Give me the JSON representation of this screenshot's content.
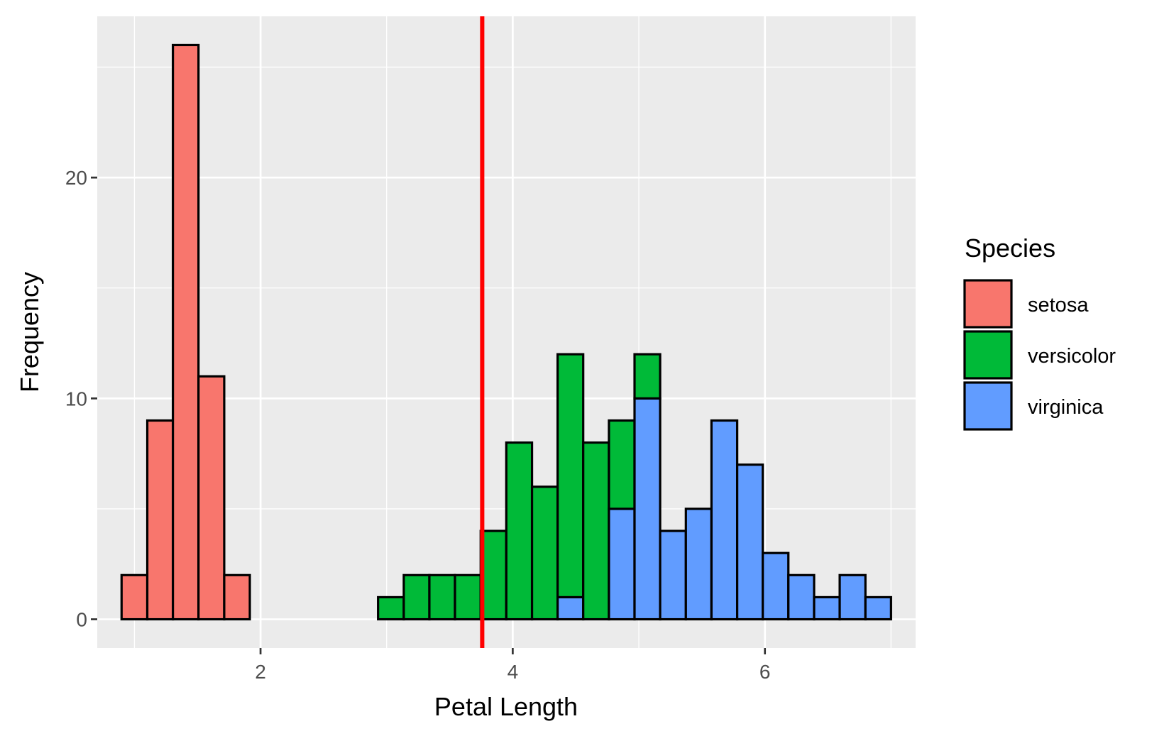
{
  "chart_data": {
    "type": "bar",
    "subtype": "stacked histogram",
    "title": "",
    "xlabel": "Petal Length",
    "ylabel": "Frequency",
    "xlim": [
      0.705,
      7.195
    ],
    "ylim": [
      -1.3,
      27.3
    ],
    "x_ticks": [
      2,
      4,
      6
    ],
    "x_tick_labels": [
      "2",
      "4",
      "6"
    ],
    "y_ticks": [
      0,
      10,
      20
    ],
    "y_tick_labels": [
      "0",
      "10",
      "20"
    ],
    "grid": true,
    "vline": {
      "x": 3.758,
      "color": "#FF0000"
    },
    "bin_width": 0.2034,
    "bins": [
      {
        "x0": 0.898,
        "x1": 1.102,
        "setosa": 2,
        "versicolor": 0,
        "virginica": 0
      },
      {
        "x0": 1.102,
        "x1": 1.305,
        "setosa": 9,
        "versicolor": 0,
        "virginica": 0
      },
      {
        "x0": 1.305,
        "x1": 1.508,
        "setosa": 26,
        "versicolor": 0,
        "virginica": 0
      },
      {
        "x0": 1.508,
        "x1": 1.712,
        "setosa": 11,
        "versicolor": 0,
        "virginica": 0
      },
      {
        "x0": 1.712,
        "x1": 1.915,
        "setosa": 2,
        "versicolor": 0,
        "virginica": 0
      },
      {
        "x0": 1.915,
        "x1": 2.119,
        "setosa": 0,
        "versicolor": 0,
        "virginica": 0
      },
      {
        "x0": 2.119,
        "x1": 2.322,
        "setosa": 0,
        "versicolor": 0,
        "virginica": 0
      },
      {
        "x0": 2.322,
        "x1": 2.525,
        "setosa": 0,
        "versicolor": 0,
        "virginica": 0
      },
      {
        "x0": 2.525,
        "x1": 2.729,
        "setosa": 0,
        "versicolor": 0,
        "virginica": 0
      },
      {
        "x0": 2.729,
        "x1": 2.932,
        "setosa": 0,
        "versicolor": 0,
        "virginica": 0
      },
      {
        "x0": 2.932,
        "x1": 3.136,
        "setosa": 0,
        "versicolor": 1,
        "virginica": 0
      },
      {
        "x0": 3.136,
        "x1": 3.339,
        "setosa": 0,
        "versicolor": 2,
        "virginica": 0
      },
      {
        "x0": 3.339,
        "x1": 3.542,
        "setosa": 0,
        "versicolor": 2,
        "virginica": 0
      },
      {
        "x0": 3.542,
        "x1": 3.746,
        "setosa": 0,
        "versicolor": 2,
        "virginica": 0
      },
      {
        "x0": 3.746,
        "x1": 3.949,
        "setosa": 0,
        "versicolor": 4,
        "virginica": 0
      },
      {
        "x0": 3.949,
        "x1": 4.153,
        "setosa": 0,
        "versicolor": 8,
        "virginica": 0
      },
      {
        "x0": 4.153,
        "x1": 4.356,
        "setosa": 0,
        "versicolor": 6,
        "virginica": 0
      },
      {
        "x0": 4.356,
        "x1": 4.559,
        "setosa": 0,
        "versicolor": 11,
        "virginica": 1
      },
      {
        "x0": 4.559,
        "x1": 4.763,
        "setosa": 0,
        "versicolor": 8,
        "virginica": 0
      },
      {
        "x0": 4.763,
        "x1": 4.966,
        "setosa": 0,
        "versicolor": 4,
        "virginica": 5
      },
      {
        "x0": 4.966,
        "x1": 5.169,
        "setosa": 0,
        "versicolor": 2,
        "virginica": 10
      },
      {
        "x0": 5.169,
        "x1": 5.373,
        "setosa": 0,
        "versicolor": 0,
        "virginica": 4
      },
      {
        "x0": 5.373,
        "x1": 5.576,
        "setosa": 0,
        "versicolor": 0,
        "virginica": 5
      },
      {
        "x0": 5.576,
        "x1": 5.78,
        "setosa": 0,
        "versicolor": 0,
        "virginica": 9
      },
      {
        "x0": 5.78,
        "x1": 5.983,
        "setosa": 0,
        "versicolor": 0,
        "virginica": 7
      },
      {
        "x0": 5.983,
        "x1": 6.186,
        "setosa": 0,
        "versicolor": 0,
        "virginica": 3
      },
      {
        "x0": 6.186,
        "x1": 6.39,
        "setosa": 0,
        "versicolor": 0,
        "virginica": 2
      },
      {
        "x0": 6.39,
        "x1": 6.593,
        "setosa": 0,
        "versicolor": 0,
        "virginica": 1
      },
      {
        "x0": 6.593,
        "x1": 6.797,
        "setosa": 0,
        "versicolor": 0,
        "virginica": 2
      },
      {
        "x0": 6.797,
        "x1": 7.0,
        "setosa": 0,
        "versicolor": 0,
        "virginica": 1
      }
    ],
    "series": [
      {
        "key": "setosa",
        "name": "setosa",
        "color": "#F8766D"
      },
      {
        "key": "versicolor",
        "name": "versicolor",
        "color": "#00BA38"
      },
      {
        "key": "virginica",
        "name": "virginica",
        "color": "#619CFF"
      }
    ],
    "legend": {
      "title": "Species",
      "placement": "right",
      "entries": [
        "setosa",
        "versicolor",
        "virginica"
      ]
    },
    "colors": {
      "panel_background": "#EBEBEB",
      "grid_line": "#FFFFFF",
      "bar_outline": "#000000",
      "tick_label": "#4D4D4D",
      "tick_mark": "#333333"
    }
  }
}
